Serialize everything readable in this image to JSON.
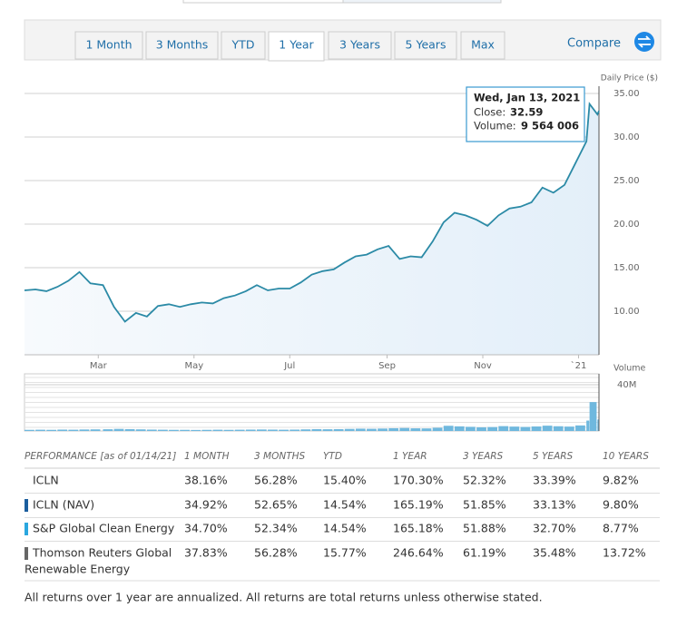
{
  "tabs": [
    "1 Month",
    "3 Months",
    "YTD",
    "1 Year",
    "3 Years",
    "5 Years",
    "Max"
  ],
  "active_tab": 3,
  "compare": "Compare",
  "chart_data": {
    "type": "line",
    "y_label": "Daily Price ($)",
    "y2_label": "Volume",
    "x": [
      "2020-01-14",
      "2020-01-21",
      "2020-01-28",
      "2020-02-04",
      "2020-02-11",
      "2020-02-18",
      "2020-02-25",
      "2020-03-04",
      "2020-03-11",
      "2020-03-18",
      "2020-03-25",
      "2020-04-01",
      "2020-04-08",
      "2020-04-15",
      "2020-04-22",
      "2020-04-29",
      "2020-05-06",
      "2020-05-13",
      "2020-05-20",
      "2020-05-27",
      "2020-06-03",
      "2020-06-10",
      "2020-06-17",
      "2020-06-24",
      "2020-07-01",
      "2020-07-08",
      "2020-07-15",
      "2020-07-22",
      "2020-07-29",
      "2020-08-05",
      "2020-08-12",
      "2020-08-19",
      "2020-08-26",
      "2020-09-02",
      "2020-09-09",
      "2020-09-16",
      "2020-09-23",
      "2020-09-30",
      "2020-10-07",
      "2020-10-14",
      "2020-10-21",
      "2020-10-28",
      "2020-11-04",
      "2020-11-11",
      "2020-11-18",
      "2020-11-25",
      "2020-12-02",
      "2020-12-09",
      "2020-12-16",
      "2020-12-23",
      "2020-12-30",
      "2021-01-06",
      "2021-01-08",
      "2021-01-13",
      "2021-01-14"
    ],
    "xlim": [
      "2020-01-14",
      "2021-01-14"
    ],
    "xticks": [
      {
        "value": "2020-03-01",
        "label": "Mar"
      },
      {
        "value": "2020-05-01",
        "label": "May"
      },
      {
        "value": "2020-07-01",
        "label": "Jul"
      },
      {
        "value": "2020-09-01",
        "label": "Sep"
      },
      {
        "value": "2020-11-01",
        "label": "Nov"
      },
      {
        "value": "2021-01-01",
        "label": "`21"
      }
    ],
    "ylim": [
      5,
      35
    ],
    "yticks": [
      {
        "value": 10,
        "label": "10.00"
      },
      {
        "value": 15,
        "label": "15.00"
      },
      {
        "value": 20,
        "label": "20.00"
      },
      {
        "value": 25,
        "label": "25.00"
      },
      {
        "value": 30,
        "label": "30.00"
      },
      {
        "value": 35,
        "label": "35.00"
      }
    ],
    "y2lim": [
      0,
      40
    ],
    "y2ticks": [
      {
        "value": 40,
        "label": "40M"
      }
    ],
    "grid": true,
    "series": [
      {
        "color": "#2b8aa6",
        "values": [
          12.4,
          12.5,
          12.3,
          12.8,
          13.5,
          14.5,
          13.2,
          13.0,
          10.5,
          8.8,
          9.8,
          9.4,
          10.6,
          10.8,
          10.5,
          10.8,
          11.0,
          10.9,
          11.5,
          11.8,
          12.3,
          13.0,
          12.4,
          12.6,
          12.6,
          13.3,
          14.2,
          14.6,
          14.8,
          15.6,
          16.3,
          16.5,
          17.1,
          17.5,
          16.0,
          16.3,
          16.2,
          18.0,
          20.2,
          21.3,
          21.0,
          20.5,
          19.8,
          21.0,
          21.8,
          22.0,
          22.5,
          24.2,
          23.6,
          24.5,
          27.0,
          29.5,
          33.8,
          32.59,
          33.0
        ]
      },
      {
        "color": "#6fb8de",
        "axis": "y2",
        "values": [
          1.0,
          1.1,
          1.0,
          1.2,
          1.1,
          1.3,
          1.4,
          1.5,
          1.8,
          1.6,
          1.4,
          1.2,
          1.1,
          1.0,
          1.0,
          0.9,
          1.0,
          1.1,
          1.0,
          1.1,
          1.2,
          1.3,
          1.2,
          1.1,
          1.2,
          1.4,
          1.6,
          1.5,
          1.6,
          1.8,
          2.0,
          1.9,
          2.1,
          2.4,
          2.6,
          2.3,
          2.2,
          2.8,
          4.5,
          4.0,
          3.6,
          3.2,
          3.4,
          4.2,
          3.8,
          3.5,
          3.9,
          4.6,
          4.1,
          3.8,
          4.8,
          9.0,
          25.0,
          9.564006,
          10.0
        ]
      }
    ]
  },
  "tooltip": {
    "date": "Wed, Jan 13, 2021",
    "close_label": "Close:",
    "volume_label": "Volume:",
    "volume": "9 564 006",
    "point": 53
  },
  "table": {
    "header": [
      "PERFORMANCE [as of 01/14/21]",
      "1 MONTH",
      "3 MONTHS",
      "YTD",
      "1 YEAR",
      "3 YEARS",
      "5 YEARS",
      "10 YEARS"
    ],
    "rows": [
      {
        "cells": [
          "ICLN",
          "38.16%",
          "56.28%",
          "15.40%",
          "170.30%",
          "52.32%",
          "33.39%",
          "9.82%"
        ]
      },
      {
        "cells": [
          "ICLN (NAV)",
          "34.92%",
          "52.65%",
          "14.54%",
          "165.19%",
          "51.85%",
          "33.13%",
          "9.80%"
        ],
        "color": "#1b5e9e"
      },
      {
        "cells": [
          "S&P Global Clean Energy",
          "34.70%",
          "52.34%",
          "14.54%",
          "165.18%",
          "51.88%",
          "32.70%",
          "8.77%"
        ],
        "color": "#2aa7df"
      },
      {
        "cells": [
          "Thomson Reuters Global",
          "37.83%",
          "56.28%",
          "15.77%",
          "246.64%",
          "61.19%",
          "35.48%",
          "13.72%"
        ],
        "cont": "Renewable Energy",
        "color": "#666666"
      }
    ]
  },
  "footnote": "All returns over 1 year are annualized. All returns are total returns unless otherwise stated."
}
